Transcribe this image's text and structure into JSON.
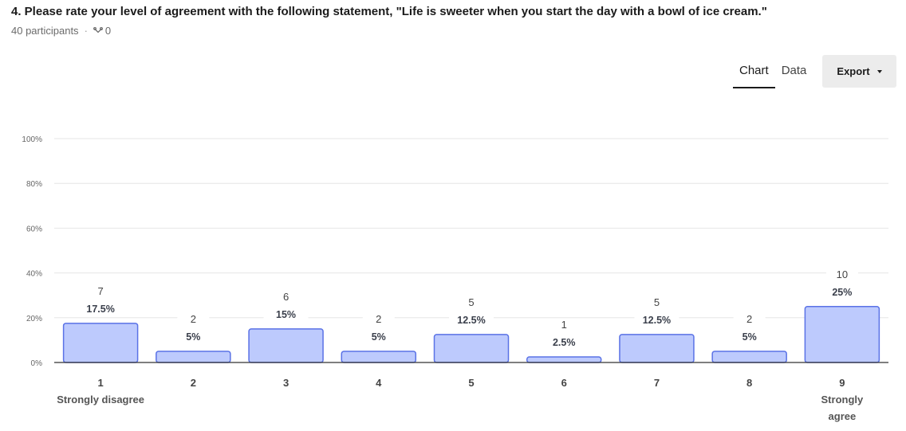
{
  "question": {
    "title": "4. Please rate your level of agreement with the following statement, \"Life is sweeter when you start the day with a bowl of ice cream.\"",
    "participants": "40 participants",
    "skips": "0",
    "skip_icon": "skip-arrow-icon"
  },
  "tabs": [
    {
      "label": "Chart",
      "active": true
    },
    {
      "label": "Data",
      "active": false
    }
  ],
  "export": {
    "label": "Export",
    "icon": "caret-down-icon"
  },
  "colors": {
    "bar_fill": "#bdcafd",
    "bar_stroke": "#5a72e6",
    "grid": "#e6e6e6",
    "axis": "#333333"
  },
  "chart_data": {
    "type": "bar",
    "categories": [
      "1",
      "2",
      "3",
      "4",
      "5",
      "6",
      "7",
      "8",
      "9"
    ],
    "category_sublabels": [
      [
        "Strongly disagree"
      ],
      [],
      [],
      [],
      [],
      [],
      [],
      [],
      [
        "Strongly",
        "agree"
      ]
    ],
    "counts": [
      "7",
      "2",
      "6",
      "2",
      "5",
      "1",
      "5",
      "2",
      "10"
    ],
    "percent_labels": [
      "17.5%",
      "5%",
      "15%",
      "5%",
      "12.5%",
      "2.5%",
      "12.5%",
      "5%",
      "25%"
    ],
    "values": [
      17.5,
      5,
      15,
      5,
      12.5,
      2.5,
      12.5,
      5,
      25
    ],
    "y_ticks": [
      0,
      20,
      40,
      60,
      80,
      100
    ],
    "y_tick_labels": [
      "0%",
      "20%",
      "40%",
      "60%",
      "80%",
      "100%"
    ],
    "ylim": [
      0,
      100
    ],
    "grid": true
  }
}
